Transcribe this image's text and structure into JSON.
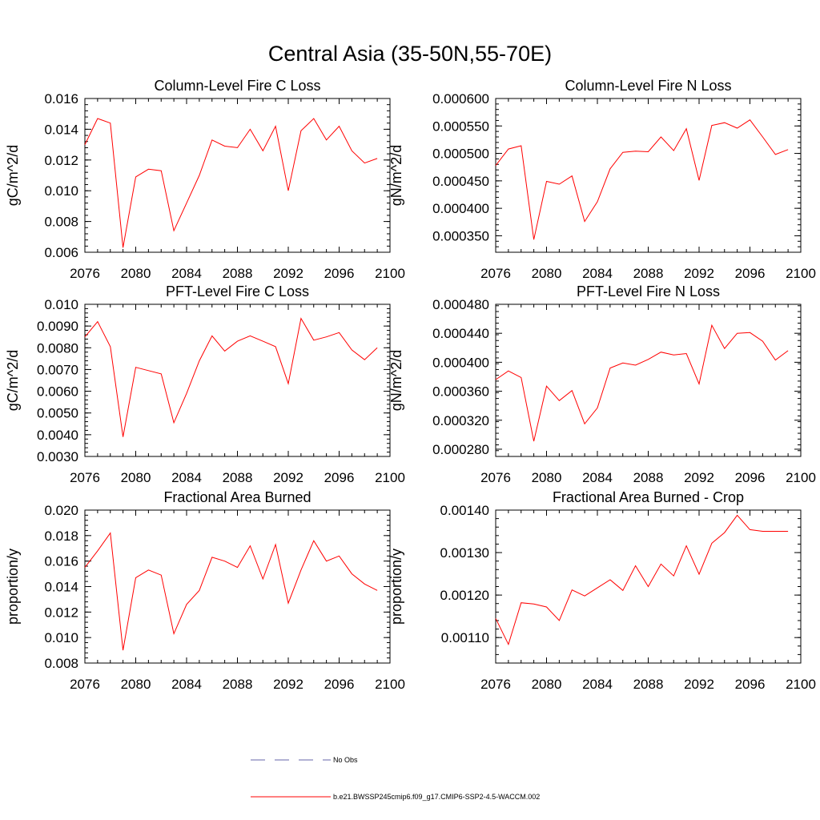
{
  "title": "Central Asia (35-50N,55-70E)",
  "legend": {
    "obs_label": "No Obs",
    "model_label": "b.e21.BWSSP245cmip6.f09_g17.CMIP6-SSP2-4.5-WACCM.002",
    "obs_color": "#6666aa",
    "model_color": "#ff0000"
  },
  "chart_data": [
    {
      "type": "line",
      "title": "Column-Level Fire C Loss",
      "ylabel": "gC/m^2/d",
      "xlim": [
        2076,
        2100
      ],
      "ylim": [
        0.006,
        0.016
      ],
      "xticks": [
        "2076",
        "2080",
        "2084",
        "2088",
        "2092",
        "2096",
        "2100"
      ],
      "yticks": [
        "0.006",
        "0.008",
        "0.010",
        "0.012",
        "0.014",
        "0.016"
      ],
      "x": [
        2076,
        2077,
        2078,
        2079,
        2080,
        2081,
        2082,
        2083,
        2084,
        2085,
        2086,
        2087,
        2088,
        2089,
        2090,
        2091,
        2092,
        2093,
        2094,
        2095,
        2096,
        2097,
        2098,
        2099
      ],
      "series": [
        {
          "values": [
            0.013,
            0.0147,
            0.0144,
            0.0063,
            0.0109,
            0.0114,
            0.0113,
            0.0074,
            0.0092,
            0.011,
            0.0133,
            0.0129,
            0.0128,
            0.014,
            0.0126,
            0.0142,
            0.01,
            0.0139,
            0.0147,
            0.0133,
            0.0142,
            0.0126,
            0.0118,
            0.0121
          ]
        }
      ]
    },
    {
      "type": "line",
      "title": "Column-Level Fire N Loss",
      "ylabel": "gN/m^2/d",
      "xlim": [
        2076,
        2100
      ],
      "ylim": [
        0.00032,
        0.0006
      ],
      "xticks": [
        "2076",
        "2080",
        "2084",
        "2088",
        "2092",
        "2096",
        "2100"
      ],
      "yticks": [
        "0.000350",
        "0.000400",
        "0.000450",
        "0.000500",
        "0.000550",
        "0.000600"
      ],
      "x": [
        2076,
        2077,
        2078,
        2079,
        2080,
        2081,
        2082,
        2083,
        2084,
        2085,
        2086,
        2087,
        2088,
        2089,
        2090,
        2091,
        2092,
        2093,
        2094,
        2095,
        2096,
        2097,
        2098,
        2099
      ],
      "series": [
        {
          "values": [
            0.000478,
            0.000508,
            0.000514,
            0.000343,
            0.000449,
            0.000444,
            0.000459,
            0.000376,
            0.000412,
            0.000472,
            0.000502,
            0.000504,
            0.000503,
            0.00053,
            0.000505,
            0.000545,
            0.000451,
            0.000551,
            0.000556,
            0.000546,
            0.000561,
            0.00053,
            0.000498,
            0.000507
          ]
        }
      ]
    },
    {
      "type": "line",
      "title": "PFT-Level Fire C Loss",
      "ylabel": "gC/m^2/d",
      "xlim": [
        2076,
        2100
      ],
      "ylim": [
        0.003,
        0.01
      ],
      "xticks": [
        "2076",
        "2080",
        "2084",
        "2088",
        "2092",
        "2096",
        "2100"
      ],
      "yticks": [
        "0.0030",
        "0.0040",
        "0.0050",
        "0.0060",
        "0.0070",
        "0.0080",
        "0.0090",
        "0.010"
      ],
      "x": [
        2076,
        2077,
        2078,
        2079,
        2080,
        2081,
        2082,
        2083,
        2084,
        2085,
        2086,
        2087,
        2088,
        2089,
        2090,
        2091,
        2092,
        2093,
        2094,
        2095,
        2096,
        2097,
        2098,
        2099
      ],
      "series": [
        {
          "values": [
            0.0085,
            0.0092,
            0.00805,
            0.0039,
            0.0071,
            0.00695,
            0.0068,
            0.00455,
            0.0059,
            0.0074,
            0.00855,
            0.00785,
            0.0083,
            0.00855,
            0.0083,
            0.00805,
            0.00635,
            0.00935,
            0.00835,
            0.0085,
            0.0087,
            0.0079,
            0.00745,
            0.008
          ]
        }
      ]
    },
    {
      "type": "line",
      "title": "PFT-Level Fire N Loss",
      "ylabel": "gN/m^2/d",
      "xlim": [
        2076,
        2100
      ],
      "ylim": [
        0.00027,
        0.00048
      ],
      "xticks": [
        "2076",
        "2080",
        "2084",
        "2088",
        "2092",
        "2096",
        "2100"
      ],
      "yticks": [
        "0.000280",
        "0.000320",
        "0.000360",
        "0.000400",
        "0.000440",
        "0.000480"
      ],
      "x": [
        2076,
        2077,
        2078,
        2079,
        2080,
        2081,
        2082,
        2083,
        2084,
        2085,
        2086,
        2087,
        2088,
        2089,
        2090,
        2091,
        2092,
        2093,
        2094,
        2095,
        2096,
        2097,
        2098,
        2099
      ],
      "series": [
        {
          "values": [
            0.000376,
            0.000388,
            0.000379,
            0.000291,
            0.000367,
            0.000347,
            0.000361,
            0.000315,
            0.000337,
            0.000392,
            0.000399,
            0.000396,
            0.000404,
            0.000414,
            0.00041,
            0.000412,
            0.00037,
            0.000451,
            0.000419,
            0.00044,
            0.000441,
            0.000429,
            0.000403,
            0.000416
          ]
        }
      ]
    },
    {
      "type": "line",
      "title": "Fractional Area Burned",
      "ylabel": "proportion/y",
      "xlim": [
        2076,
        2100
      ],
      "ylim": [
        0.008,
        0.02
      ],
      "xticks": [
        "2076",
        "2080",
        "2084",
        "2088",
        "2092",
        "2096",
        "2100"
      ],
      "yticks": [
        "0.008",
        "0.010",
        "0.012",
        "0.014",
        "0.016",
        "0.018",
        "0.020"
      ],
      "x": [
        2076,
        2077,
        2078,
        2079,
        2080,
        2081,
        2082,
        2083,
        2084,
        2085,
        2086,
        2087,
        2088,
        2089,
        2090,
        2091,
        2092,
        2093,
        2094,
        2095,
        2096,
        2097,
        2098,
        2099
      ],
      "series": [
        {
          "values": [
            0.0155,
            0.0168,
            0.0182,
            0.009,
            0.0147,
            0.0153,
            0.0149,
            0.0103,
            0.0126,
            0.0137,
            0.0163,
            0.016,
            0.0155,
            0.0172,
            0.0146,
            0.0173,
            0.0127,
            0.0153,
            0.0176,
            0.016,
            0.0164,
            0.015,
            0.0142,
            0.0137
          ]
        }
      ]
    },
    {
      "type": "line",
      "title": "Fractional Area Burned - Crop",
      "ylabel": "proportion/y",
      "xlim": [
        2076,
        2100
      ],
      "ylim": [
        0.00104,
        0.0014
      ],
      "xticks": [
        "2076",
        "2080",
        "2084",
        "2088",
        "2092",
        "2096",
        "2100"
      ],
      "yticks": [
        "0.00110",
        "0.00120",
        "0.00130",
        "0.00140"
      ],
      "x": [
        2076,
        2077,
        2078,
        2079,
        2080,
        2081,
        2082,
        2083,
        2084,
        2085,
        2086,
        2087,
        2088,
        2089,
        2090,
        2091,
        2092,
        2093,
        2094,
        2095,
        2096,
        2097,
        2098,
        2099
      ],
      "series": [
        {
          "values": [
            0.001145,
            0.001084,
            0.001182,
            0.001179,
            0.001172,
            0.00114,
            0.001212,
            0.001198,
            0.001217,
            0.001236,
            0.001211,
            0.001269,
            0.00122,
            0.001273,
            0.001245,
            0.001316,
            0.001249,
            0.001322,
            0.001347,
            0.001388,
            0.001354,
            0.00135,
            0.00135,
            0.00135
          ]
        }
      ]
    }
  ]
}
